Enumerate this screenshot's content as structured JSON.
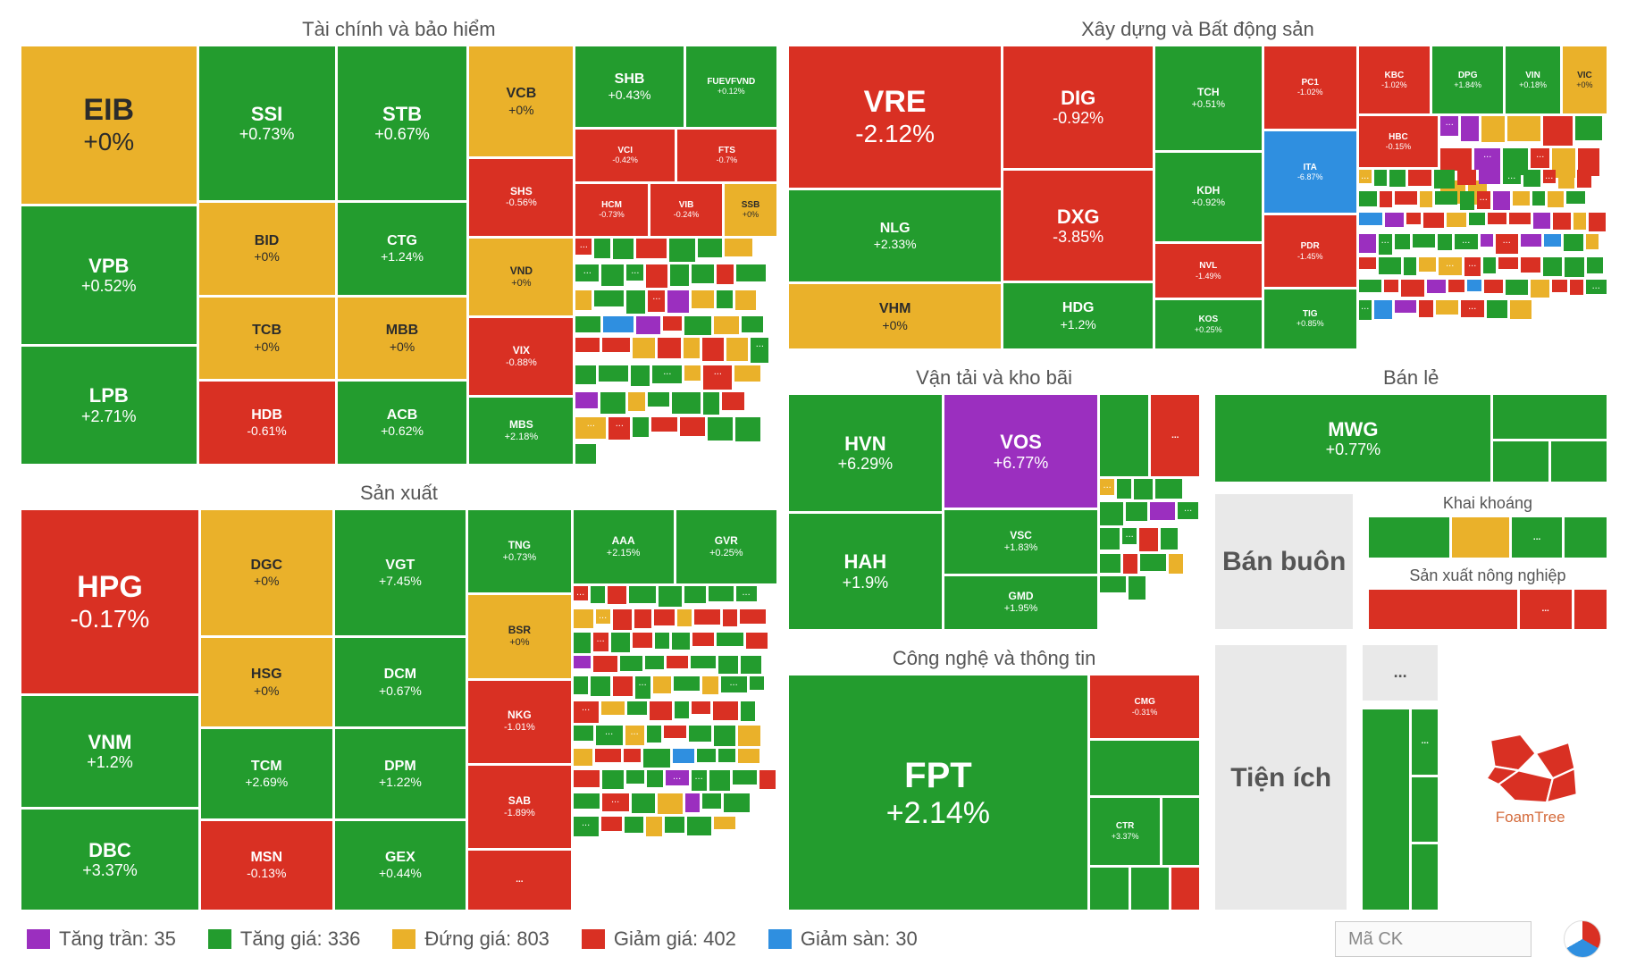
{
  "colors": {
    "up": "#239c2e",
    "flat": "#eab12a",
    "down": "#d93023",
    "ceiling": "#9b2fbf",
    "floor": "#2f8fe0",
    "background": "#ffffff",
    "text_muted": "#555555",
    "gray_box": "#e9e9e9"
  },
  "font": {
    "family": "Arial",
    "title_size_pt": 16,
    "tile_size_pt_range": [
      9,
      26
    ]
  },
  "legend": {
    "items": [
      {
        "key": "ceiling",
        "label": "Tăng trần: 35",
        "color": "#9b2fbf"
      },
      {
        "key": "up",
        "label": "Tăng giá: 336",
        "color": "#239c2e"
      },
      {
        "key": "flat",
        "label": "Đứng giá: 803",
        "color": "#eab12a"
      },
      {
        "key": "down",
        "label": "Giảm giá: 402",
        "color": "#d93023"
      },
      {
        "key": "floor",
        "label": "Giảm sàn: 30",
        "color": "#2f8fe0"
      }
    ],
    "search_placeholder": "Mã CK"
  },
  "gray_sectors": {
    "wholesale": "Bán buôn",
    "utilities": "Tiện ích"
  },
  "logo_text": "FoamTree",
  "sectors": {
    "finance": {
      "title": "Tài chính và bảo hiểm",
      "tiles": {
        "EIB": {
          "symbol": "EIB",
          "change": "+0%",
          "state": "flat"
        },
        "VPB": {
          "symbol": "VPB",
          "change": "+0.52%",
          "state": "up"
        },
        "LPB": {
          "symbol": "LPB",
          "change": "+2.71%",
          "state": "up"
        },
        "SSI": {
          "symbol": "SSI",
          "change": "+0.73%",
          "state": "up"
        },
        "BID": {
          "symbol": "BID",
          "change": "+0%",
          "state": "flat"
        },
        "TCB": {
          "symbol": "TCB",
          "change": "+0%",
          "state": "flat"
        },
        "HDB": {
          "symbol": "HDB",
          "change": "-0.61%",
          "state": "down"
        },
        "STB": {
          "symbol": "STB",
          "change": "+0.67%",
          "state": "up"
        },
        "CTG": {
          "symbol": "CTG",
          "change": "+1.24%",
          "state": "up"
        },
        "MBB": {
          "symbol": "MBB",
          "change": "+0%",
          "state": "flat"
        },
        "ACB": {
          "symbol": "ACB",
          "change": "+0.62%",
          "state": "up"
        },
        "VCB": {
          "symbol": "VCB",
          "change": "+0%",
          "state": "flat"
        },
        "SHS": {
          "symbol": "SHS",
          "change": "-0.56%",
          "state": "down"
        },
        "VND": {
          "symbol": "VND",
          "change": "+0%",
          "state": "flat"
        },
        "VIX": {
          "symbol": "VIX",
          "change": "-0.88%",
          "state": "down"
        },
        "MBS": {
          "symbol": "MBS",
          "change": "+2.18%",
          "state": "up"
        },
        "SHB": {
          "symbol": "SHB",
          "change": "+0.43%",
          "state": "up"
        },
        "FUEVFVND": {
          "symbol": "FUEVFVND",
          "change": "+0.12%",
          "state": "up"
        },
        "VCI": {
          "symbol": "VCI",
          "change": "-0.42%",
          "state": "down"
        },
        "FTS": {
          "symbol": "FTS",
          "change": "-0.7%",
          "state": "down"
        },
        "HCM": {
          "symbol": "HCM",
          "change": "-0.73%",
          "state": "down"
        },
        "VIB": {
          "symbol": "VIB",
          "change": "-0.24%",
          "state": "down"
        },
        "SSB": {
          "symbol": "SSB",
          "change": "+0%",
          "state": "flat"
        }
      }
    },
    "manufacturing": {
      "title": "Sản xuất",
      "tiles": {
        "HPG": {
          "symbol": "HPG",
          "change": "-0.17%",
          "state": "down"
        },
        "VNM": {
          "symbol": "VNM",
          "change": "+1.2%",
          "state": "up"
        },
        "DBC": {
          "symbol": "DBC",
          "change": "+3.37%",
          "state": "up"
        },
        "DGC": {
          "symbol": "DGC",
          "change": "+0%",
          "state": "flat"
        },
        "HSG": {
          "symbol": "HSG",
          "change": "+0%",
          "state": "flat"
        },
        "TCM": {
          "symbol": "TCM",
          "change": "+2.69%",
          "state": "up"
        },
        "MSN": {
          "symbol": "MSN",
          "change": "-0.13%",
          "state": "down"
        },
        "VGT": {
          "symbol": "VGT",
          "change": "+7.45%",
          "state": "up"
        },
        "DCM": {
          "symbol": "DCM",
          "change": "+0.67%",
          "state": "up"
        },
        "DPM": {
          "symbol": "DPM",
          "change": "+1.22%",
          "state": "up"
        },
        "GEX": {
          "symbol": "GEX",
          "change": "+0.44%",
          "state": "up"
        },
        "TNG": {
          "symbol": "TNG",
          "change": "+0.73%",
          "state": "up"
        },
        "BSR": {
          "symbol": "BSR",
          "change": "+0%",
          "state": "flat"
        },
        "NKG": {
          "symbol": "NKG",
          "change": "-1.01%",
          "state": "down"
        },
        "SAB": {
          "symbol": "SAB",
          "change": "-1.89%",
          "state": "down"
        },
        "AAA": {
          "symbol": "AAA",
          "change": "+2.15%",
          "state": "up"
        },
        "GVR": {
          "symbol": "GVR",
          "change": "+0.25%",
          "state": "up"
        }
      }
    },
    "construction": {
      "title": "Xây dựng và Bất động sản",
      "tiles": {
        "VRE": {
          "symbol": "VRE",
          "change": "-2.12%",
          "state": "down"
        },
        "NLG": {
          "symbol": "NLG",
          "change": "+2.33%",
          "state": "up"
        },
        "VHM": {
          "symbol": "VHM",
          "change": "+0%",
          "state": "flat"
        },
        "DIG": {
          "symbol": "DIG",
          "change": "-0.92%",
          "state": "down"
        },
        "DXG": {
          "symbol": "DXG",
          "change": "-3.85%",
          "state": "down"
        },
        "HDG": {
          "symbol": "HDG",
          "change": "+1.2%",
          "state": "up"
        },
        "TCH": {
          "symbol": "TCH",
          "change": "+0.51%",
          "state": "up"
        },
        "KDH": {
          "symbol": "KDH",
          "change": "+0.92%",
          "state": "up"
        },
        "NVL": {
          "symbol": "NVL",
          "change": "-1.49%",
          "state": "down"
        },
        "KOS": {
          "symbol": "KOS",
          "change": "+0.25%",
          "state": "up"
        },
        "PC1": {
          "symbol": "PC1",
          "change": "-1.02%",
          "state": "down"
        },
        "ITA": {
          "symbol": "ITA",
          "change": "-6.87%",
          "state": "floor"
        },
        "PDR": {
          "symbol": "PDR",
          "change": "-1.45%",
          "state": "down"
        },
        "TIG": {
          "symbol": "TIG",
          "change": "+0.85%",
          "state": "up"
        },
        "KBC": {
          "symbol": "KBC",
          "change": "-1.02%",
          "state": "down"
        },
        "DPG": {
          "symbol": "DPG",
          "change": "+1.84%",
          "state": "up"
        },
        "VIN": {
          "symbol": "VIN",
          "change": "+0.18%",
          "state": "up"
        },
        "VIC": {
          "symbol": "VIC",
          "change": "+0%",
          "state": "flat"
        },
        "HBC": {
          "symbol": "HBC",
          "change": "-0.15%",
          "state": "down"
        }
      }
    },
    "transport": {
      "title": "Vận tải và kho bãi",
      "tiles": {
        "HVN": {
          "symbol": "HVN",
          "change": "+6.29%",
          "state": "up"
        },
        "HAH": {
          "symbol": "HAH",
          "change": "+1.9%",
          "state": "up"
        },
        "VOS": {
          "symbol": "VOS",
          "change": "+6.77%",
          "state": "ceiling"
        },
        "VSC": {
          "symbol": "VSC",
          "change": "+1.83%",
          "state": "up"
        },
        "GMD": {
          "symbol": "GMD",
          "change": "+1.95%",
          "state": "up"
        }
      }
    },
    "tech": {
      "title": "Công nghệ và thông tin",
      "tiles": {
        "FPT": {
          "symbol": "FPT",
          "change": "+2.14%",
          "state": "up"
        },
        "CMG": {
          "symbol": "CMG",
          "change": "-0.31%",
          "state": "down"
        },
        "CTR": {
          "symbol": "CTR",
          "change": "+3.37%",
          "state": "up"
        }
      }
    },
    "retail": {
      "title": "Bán lẻ",
      "tiles": {
        "MWG": {
          "symbol": "MWG",
          "change": "+0.77%",
          "state": "up"
        }
      }
    },
    "mining": {
      "title": "Khai khoáng"
    },
    "agriculture": {
      "title": "Sản xuất nông nghiệp"
    }
  }
}
